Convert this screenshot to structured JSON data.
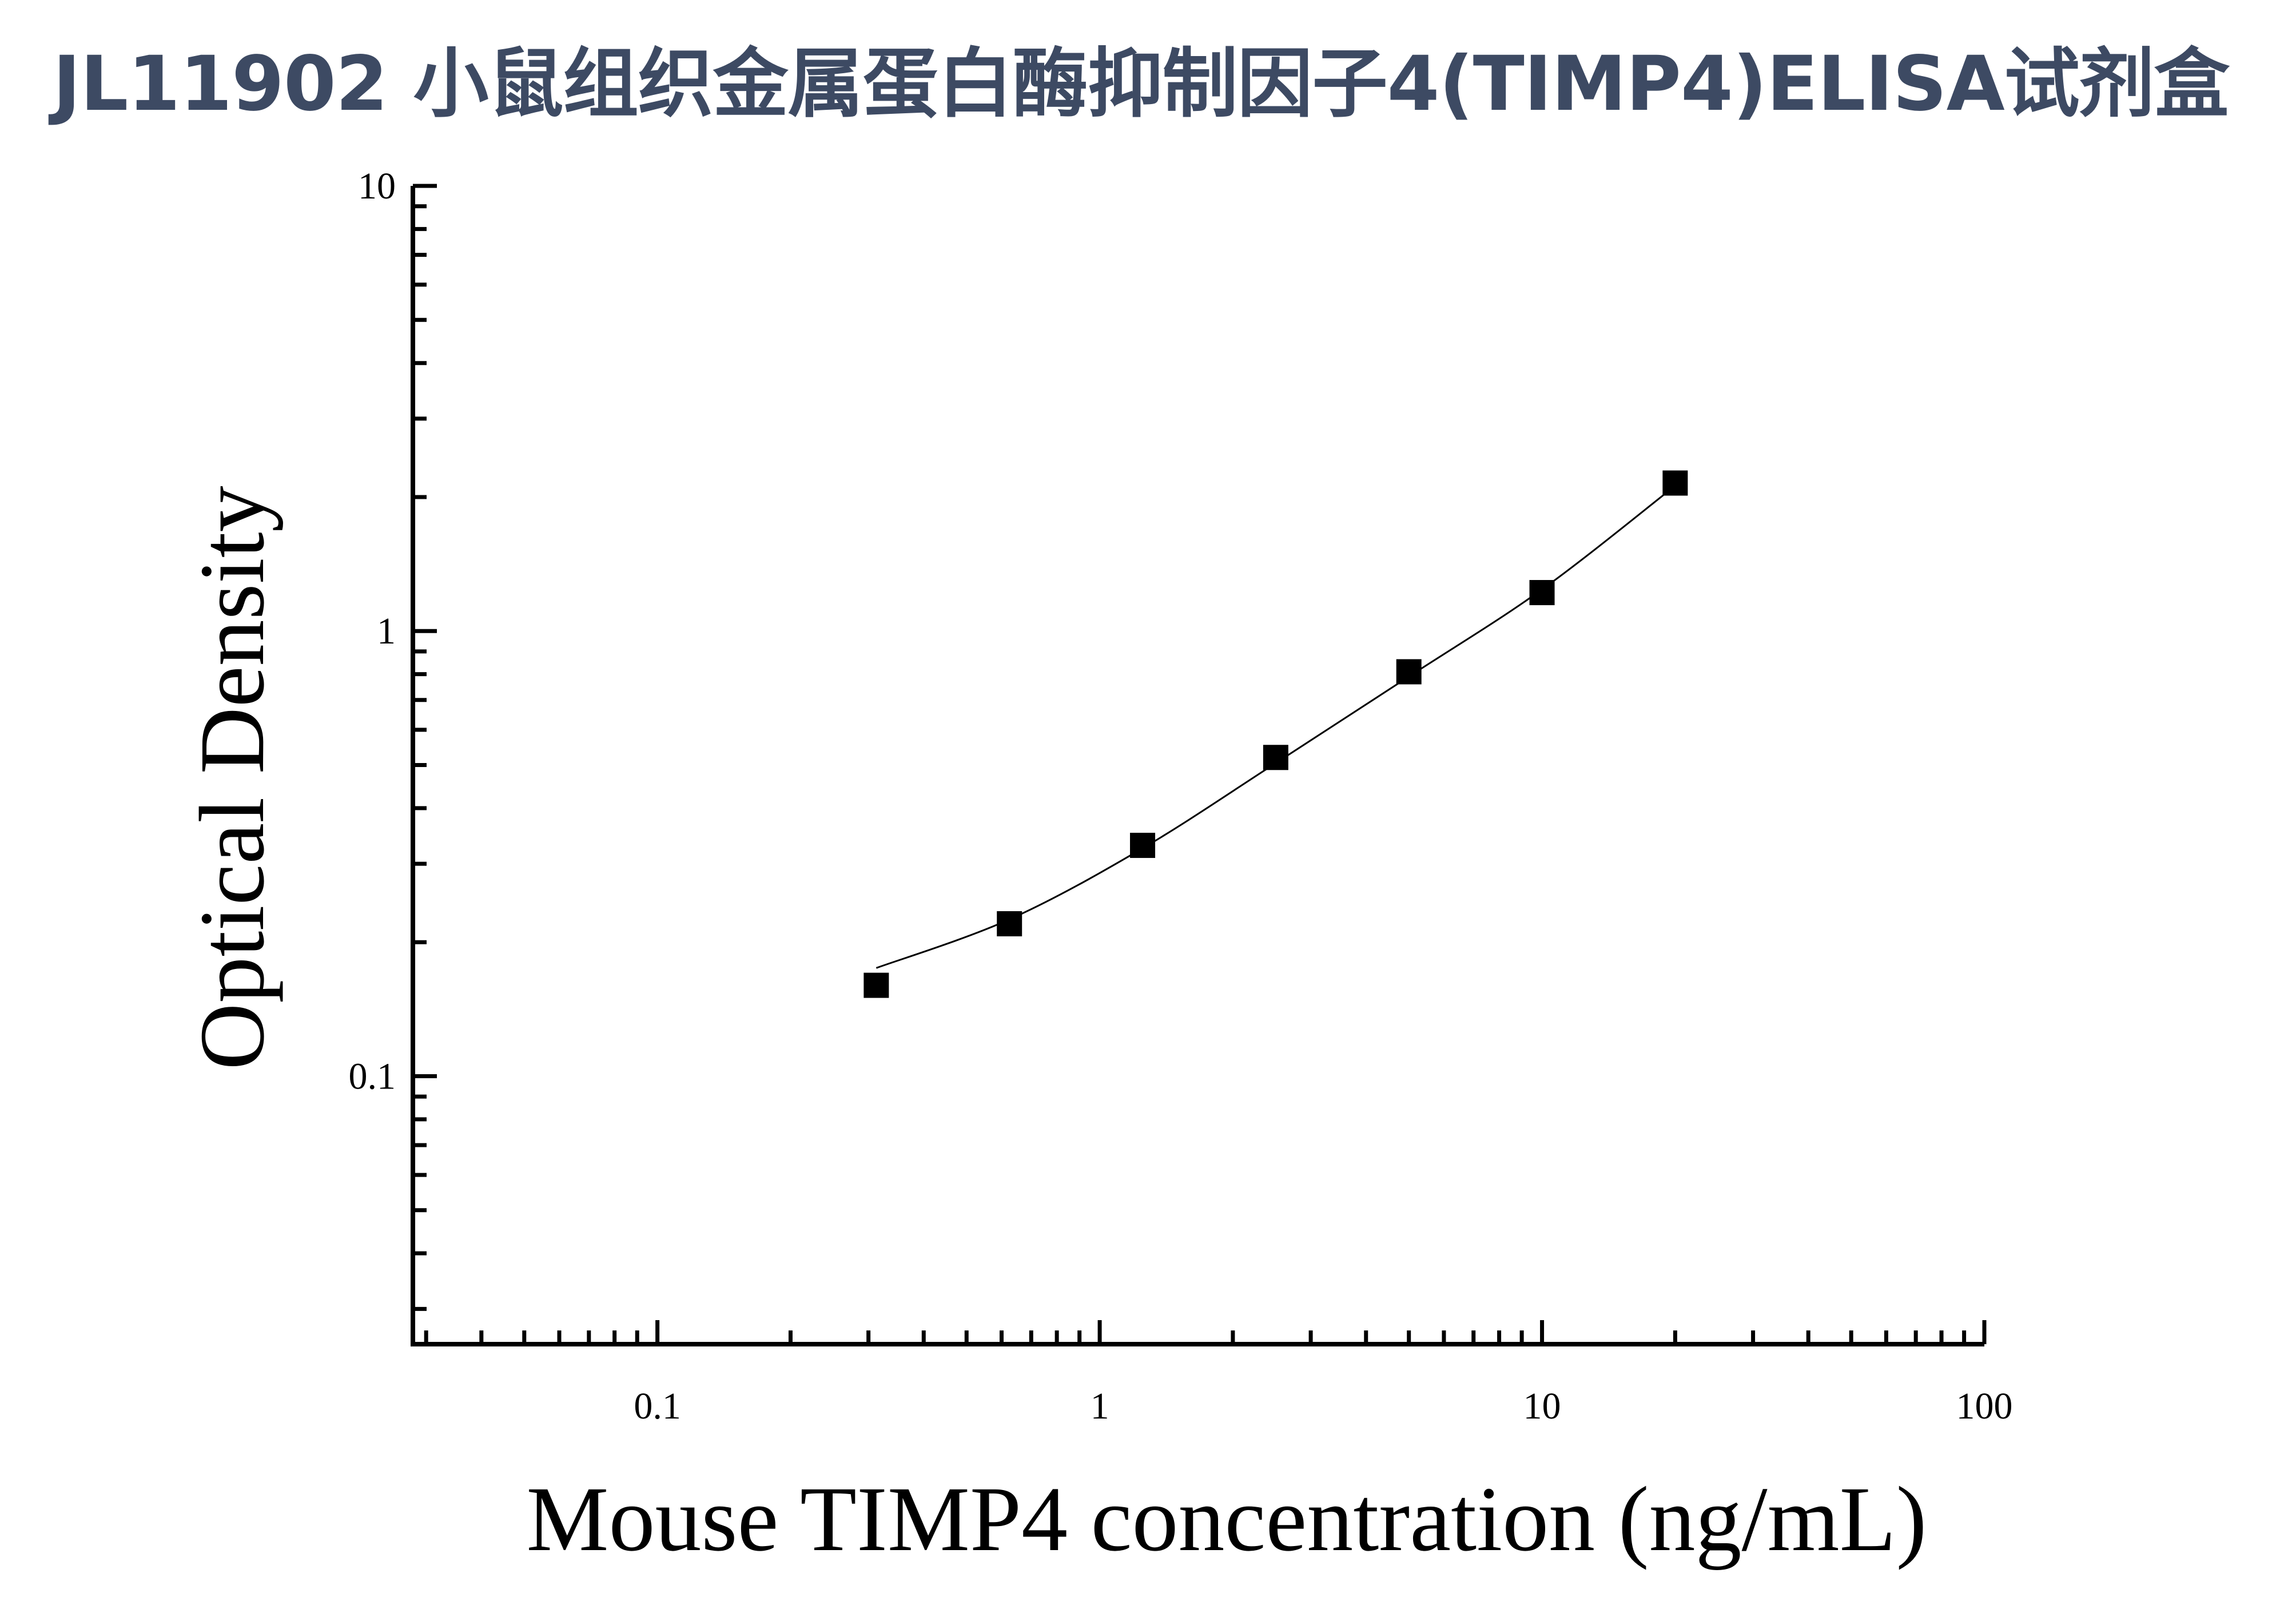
{
  "title": "JL11902 小鼠组织金属蛋白酶抑制因子4(TIMP4)ELISA试剂盒",
  "chart_data": {
    "type": "scatter",
    "x_scale": "log",
    "y_scale": "log",
    "xlabel": "Mouse TIMP4 concentration (ng/mL)",
    "ylabel": "Optical Density",
    "xlim": [
      0.028,
      100
    ],
    "ylim": [
      0.025,
      10
    ],
    "x_ticks": [
      "0.1",
      "1",
      "10",
      "100"
    ],
    "y_ticks": [
      "0.1",
      "1",
      "10"
    ],
    "grid": false,
    "series": [
      {
        "marker": "square",
        "x": [
          0.3125,
          0.625,
          1.25,
          2.5,
          5,
          10,
          20
        ],
        "y": [
          0.16,
          0.22,
          0.33,
          0.52,
          0.81,
          1.22,
          2.15
        ]
      }
    ],
    "fit_curve": {
      "x": [
        0.3125,
        0.625,
        1.25,
        2.5,
        5,
        10,
        20
      ],
      "y": [
        0.175,
        0.225,
        0.325,
        0.505,
        0.79,
        1.24,
        2.12
      ]
    }
  }
}
